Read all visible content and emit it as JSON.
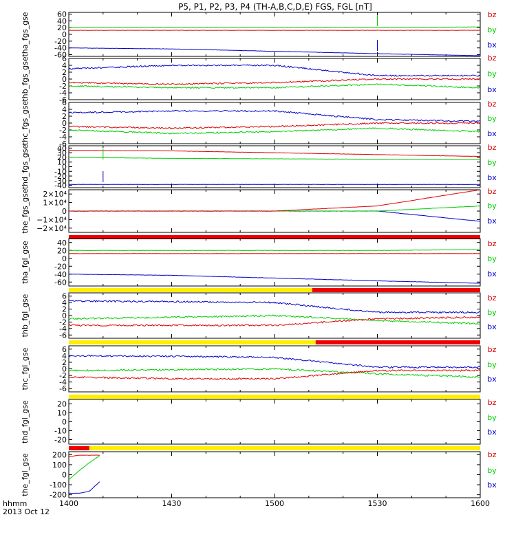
{
  "title": "P5, P1, P2, P3, P4 (TH-A,B,C,D,E) FGS, FGL [nT]",
  "x_axis": {
    "label_line1": "hhmm",
    "label_line2": "2013 Oct 12",
    "ticks": [
      "1400",
      "1430",
      "1500",
      "1530",
      "1600"
    ]
  },
  "colors": {
    "bz": "#dd0000",
    "by": "#00cc00",
    "bx": "#0000cc",
    "bar_yellow": "#ffee00",
    "bar_red": "#ee0000"
  },
  "chart_data": [
    {
      "type": "line",
      "ylabel": "tha_fgs_gse",
      "ylim": [
        -65,
        65
      ],
      "yticks": [
        "60",
        "40",
        "20",
        "0",
        "-20",
        "-40",
        "-60"
      ],
      "x": [
        "1400",
        "1430",
        "1500",
        "1530",
        "1600"
      ],
      "series": [
        {
          "name": "bz",
          "values": [
            12,
            12,
            12,
            12,
            12
          ]
        },
        {
          "name": "by",
          "values": [
            20,
            20,
            20,
            20,
            22
          ]
        },
        {
          "name": "bx",
          "values": [
            -40,
            -43,
            -50,
            -57,
            -63
          ]
        }
      ],
      "spikes_at": "1530"
    },
    {
      "type": "line",
      "ylabel": "thb_fgs_gse",
      "ylim": [
        -6,
        6
      ],
      "yticks": [
        "6",
        "4",
        "2",
        "0",
        "-2",
        "-4",
        "-6"
      ],
      "x": [
        "1400",
        "1430",
        "1500",
        "1530",
        "1600"
      ],
      "series": [
        {
          "name": "bz",
          "values": [
            -1,
            -1.5,
            -1,
            0,
            0
          ]
        },
        {
          "name": "by",
          "values": [
            -2,
            -2.5,
            -2.5,
            -1.5,
            -2.5
          ]
        },
        {
          "name": "bx",
          "values": [
            3,
            4,
            4,
            1,
            1
          ]
        }
      ]
    },
    {
      "type": "line",
      "ylabel": "thc_fgs_gse",
      "ylim": [
        -6,
        6
      ],
      "yticks": [
        "6",
        "4",
        "2",
        "0",
        "-2",
        "-4",
        "-6"
      ],
      "x": [
        "1400",
        "1430",
        "1500",
        "1530",
        "1600"
      ],
      "series": [
        {
          "name": "bz",
          "values": [
            -1,
            -1.5,
            -1,
            0,
            0
          ]
        },
        {
          "name": "by",
          "values": [
            -2,
            -3,
            -2.5,
            -1.5,
            -2.5
          ]
        },
        {
          "name": "bx",
          "values": [
            3,
            3.5,
            3.5,
            1,
            0.5
          ]
        }
      ]
    },
    {
      "type": "line",
      "ylabel": "thd_fgs_gse",
      "ylim": [
        -45,
        45
      ],
      "yticks": [
        "40",
        "30",
        "20",
        "10",
        "0",
        "-10",
        "-20",
        "-30",
        "-40"
      ],
      "x": [
        "1400",
        "1430",
        "1500",
        "1530",
        "1600"
      ],
      "series": [
        {
          "name": "bz",
          "values": [
            35,
            34,
            30,
            26,
            22
          ]
        },
        {
          "name": "by",
          "values": [
            20,
            18,
            17,
            16,
            16
          ]
        },
        {
          "name": "bx",
          "values": [
            -38,
            -38,
            -38,
            -38,
            -38
          ]
        }
      ],
      "spikes_at": "1410"
    },
    {
      "type": "line",
      "ylabel": "the_fgs_gse",
      "ylim": [
        -25000,
        25000
      ],
      "yticks": [
        "2×10⁴",
        "1×10⁴",
        "0",
        "−1×10⁴",
        "−2×10⁴"
      ],
      "x": [
        "1400",
        "1430",
        "1500",
        "1530",
        "1600"
      ],
      "series": [
        {
          "name": "bz",
          "values": [
            0,
            0,
            0,
            6000,
            25000
          ]
        },
        {
          "name": "by",
          "values": [
            0,
            0,
            0,
            0,
            6000
          ]
        },
        {
          "name": "bx",
          "values": [
            0,
            0,
            0,
            0,
            -12000
          ]
        }
      ],
      "bar": [
        {
          "color": "red",
          "from": "1400",
          "to": "1600"
        }
      ]
    },
    {
      "type": "line",
      "ylabel": "tha_fgl_gse",
      "ylim": [
        -70,
        50
      ],
      "yticks": [
        "40",
        "20",
        "0",
        "-20",
        "-40",
        "-60"
      ],
      "x": [
        "1400",
        "1430",
        "1500",
        "1530",
        "1600"
      ],
      "series": [
        {
          "name": "bz",
          "values": [
            12,
            12,
            12,
            12,
            12
          ]
        },
        {
          "name": "by",
          "values": [
            20,
            20,
            20,
            20,
            22
          ]
        },
        {
          "name": "bx",
          "values": [
            -40,
            -43,
            -50,
            -57,
            -63
          ]
        }
      ],
      "bar": [
        {
          "color": "yellow",
          "from": "1400",
          "to": "1511"
        },
        {
          "color": "red",
          "from": "1511",
          "to": "1600"
        }
      ]
    },
    {
      "type": "line",
      "ylabel": "thb_fgl_gse",
      "ylim": [
        -7,
        7
      ],
      "yticks": [
        "6",
        "4",
        "2",
        "0",
        "-2",
        "-4",
        "-6"
      ],
      "x": [
        "1400",
        "1430",
        "1500",
        "1530",
        "1600"
      ],
      "series": [
        {
          "name": "bz",
          "values": [
            -3,
            -3,
            -3,
            -1,
            -0.5
          ]
        },
        {
          "name": "by",
          "values": [
            -1,
            -0.5,
            0,
            -1.5,
            -2.5
          ]
        },
        {
          "name": "bx",
          "values": [
            4.5,
            4.3,
            4,
            1,
            1
          ]
        }
      ],
      "bar": [
        {
          "color": "yellow",
          "from": "1400",
          "to": "1512"
        },
        {
          "color": "red",
          "from": "1512",
          "to": "1600"
        }
      ]
    },
    {
      "type": "line",
      "ylabel": "thc_fgl_gse",
      "ylim": [
        -7,
        7
      ],
      "yticks": [
        "6",
        "4",
        "2",
        "0",
        "-2",
        "-4",
        "-6"
      ],
      "x": [
        "1400",
        "1430",
        "1500",
        "1530",
        "1600"
      ],
      "series": [
        {
          "name": "bz",
          "values": [
            -2.5,
            -3,
            -3,
            -0.5,
            -0.5
          ]
        },
        {
          "name": "by",
          "values": [
            -0.5,
            -0.3,
            0,
            -1.5,
            -2.5
          ]
        },
        {
          "name": "bx",
          "values": [
            4,
            3.8,
            3.5,
            0.5,
            0.5
          ]
        }
      ],
      "bar": [
        {
          "color": "yellow",
          "from": "1400",
          "to": "1600"
        }
      ]
    },
    {
      "type": "line",
      "ylabel": "thd_fgl_gse",
      "ylim": [
        -25,
        25
      ],
      "yticks": [
        "20",
        "10",
        "0",
        "-10",
        "-20"
      ],
      "x": [],
      "series": [
        {
          "name": "bz",
          "values": []
        },
        {
          "name": "by",
          "values": []
        },
        {
          "name": "bx",
          "values": []
        }
      ],
      "bar": [
        {
          "color": "red",
          "from": "1400",
          "to": "1406"
        },
        {
          "color": "yellow",
          "from": "1406",
          "to": "1600"
        }
      ]
    },
    {
      "type": "line",
      "ylabel": "the_fgl_gse",
      "ylim": [
        -230,
        230
      ],
      "yticks": [
        "200",
        "100",
        "0",
        "-100",
        "-200"
      ],
      "x": [
        "1400",
        "1403",
        "1406",
        "1409"
      ],
      "series": [
        {
          "name": "bz",
          "values": [
            180,
            195,
            195,
            195
          ]
        },
        {
          "name": "by",
          "values": [
            -50,
            40,
            120,
            190
          ]
        },
        {
          "name": "bx",
          "values": [
            -185,
            -185,
            -165,
            -70
          ]
        }
      ]
    }
  ]
}
